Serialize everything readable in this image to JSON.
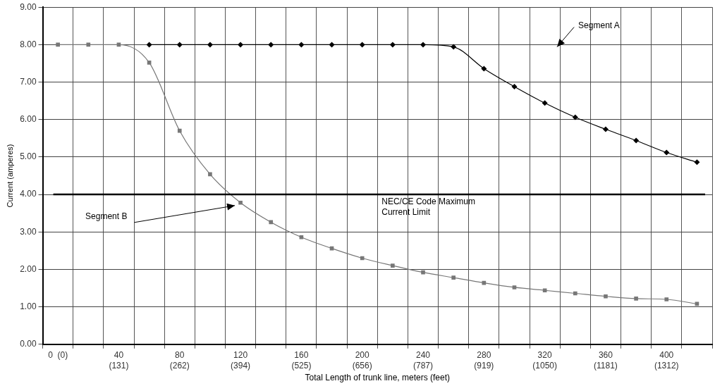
{
  "chart_data": {
    "type": "line",
    "xlabel": "Total Length of trunk line, meters (feet)",
    "ylabel": "Current (amperes)",
    "categories": [
      "0  (0)",
      null,
      "40\n(131)",
      null,
      "80\n(262)",
      null,
      "120\n(394)",
      null,
      "160\n(525)",
      null,
      "200\n(656)",
      null,
      "240\n(787)",
      null,
      "280\n(919)",
      null,
      "320\n(1050)",
      null,
      "360\n(1181)",
      null,
      "400\n(1312)",
      null
    ],
    "series": [
      {
        "color": "#000000",
        "marker": "diamond",
        "values": [
          null,
          null,
          null,
          8,
          8,
          8,
          8,
          8,
          8,
          8,
          8,
          8,
          8,
          7.94,
          7.36,
          6.88,
          6.44,
          6.06,
          5.74,
          5.44,
          5.12,
          4.86
        ]
      },
      {
        "color": "#777777",
        "marker": "square",
        "values": [
          8,
          8,
          8,
          7.52,
          5.7,
          4.54,
          3.78,
          3.26,
          2.86,
          2.56,
          2.3,
          2.1,
          1.92,
          1.78,
          1.64,
          1.52,
          1.44,
          1.36,
          1.28,
          1.22,
          1.2,
          1.08
        ]
      }
    ],
    "ylim": [
      0,
      9
    ],
    "yticks": [
      {
        "value": 0,
        "label": "0.00"
      },
      {
        "value": 1,
        "label": "1.00"
      },
      {
        "value": 2,
        "label": "2.00"
      },
      {
        "value": 3,
        "label": "3.00"
      },
      {
        "value": 4,
        "label": "4.00"
      },
      {
        "value": 5,
        "label": "5.00"
      },
      {
        "value": 6,
        "label": "6.00"
      },
      {
        "value": 7,
        "label": "7.00"
      },
      {
        "value": 8,
        "label": "8.00"
      },
      {
        "value": 9,
        "label": "9.00"
      }
    ],
    "ref_lines": [
      {
        "axis": "y",
        "value": 4,
        "label": "NEC/CE Code Maximum Current Limit",
        "color": "#000000"
      }
    ],
    "annotations": [
      "Segment A",
      {
        "text": "Segment B",
        "x": "120\n(394)",
        "y": 3.78
      }
    ],
    "grid": true,
    "legend": false
  }
}
